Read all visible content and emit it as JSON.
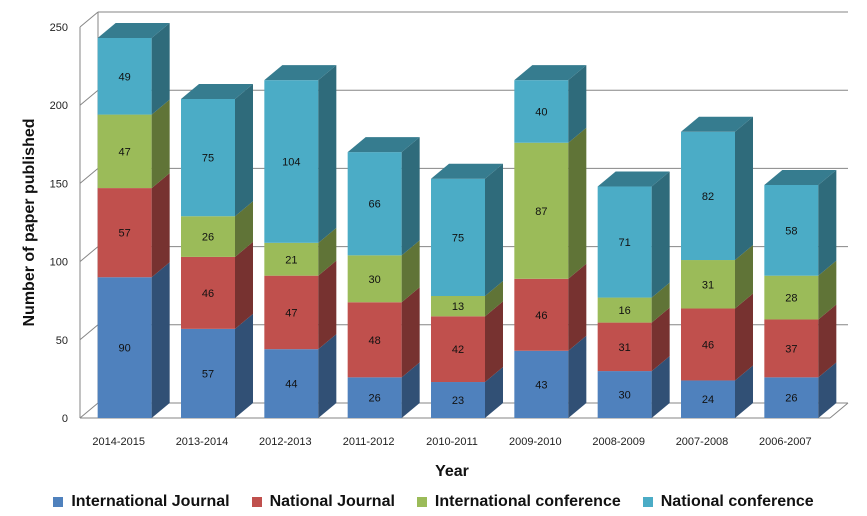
{
  "chart_data": {
    "type": "bar",
    "stacked": true,
    "three_d": true,
    "categories": [
      "2014-2015",
      "2013-2014",
      "2012-2013",
      "2011-2012",
      "2010-2011",
      "2009-2010",
      "2008-2009",
      "2007-2008",
      "2006-2007"
    ],
    "series": [
      {
        "name": "International Journal",
        "color": "#4F81BD",
        "values": [
          90,
          57,
          44,
          26,
          23,
          43,
          30,
          24,
          26
        ]
      },
      {
        "name": "National Journal",
        "color": "#C0504D",
        "values": [
          57,
          46,
          47,
          48,
          42,
          46,
          31,
          46,
          37
        ]
      },
      {
        "name": "International conference",
        "color": "#9BBB59",
        "values": [
          47,
          26,
          21,
          30,
          13,
          87,
          16,
          31,
          28
        ]
      },
      {
        "name": "National conference",
        "color": "#4BACC6",
        "values": [
          49,
          75,
          104,
          66,
          75,
          40,
          71,
          82,
          58
        ]
      }
    ],
    "xlabel": "Year",
    "ylabel": "Number of paper published",
    "ylim": [
      0,
      250
    ],
    "yticks": [
      0,
      50,
      100,
      150,
      200,
      250
    ],
    "grid": true,
    "legend_position": "bottom"
  }
}
